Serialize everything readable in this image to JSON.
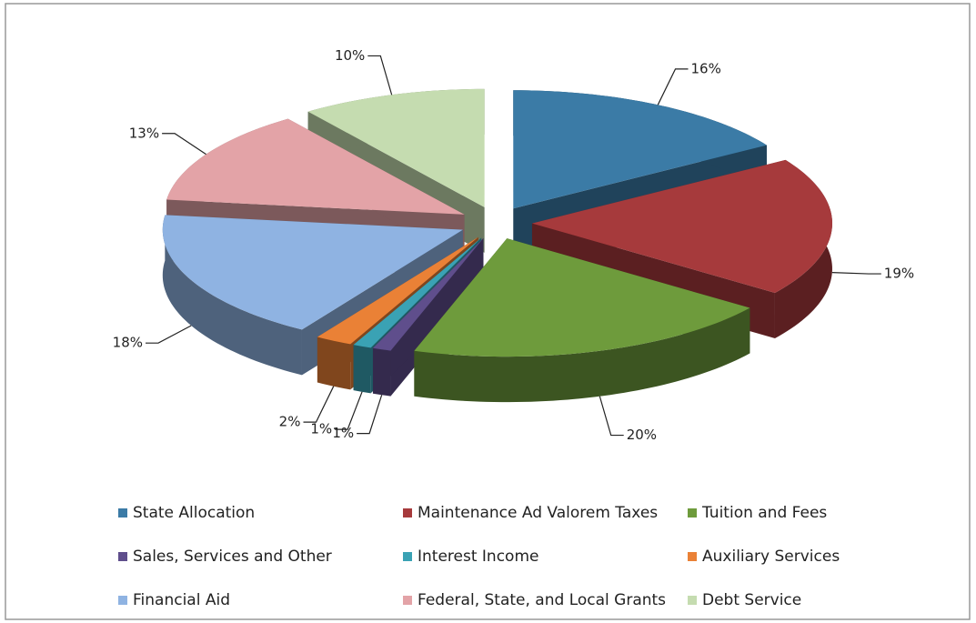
{
  "chart_data": {
    "type": "pie",
    "series": [
      {
        "name": "State Allocation",
        "color": "#3b7ba6"
      },
      {
        "name": "Maintenance Ad Valorem Taxes",
        "color": "#a63a3c"
      },
      {
        "name": "Tuition and Fees",
        "color": "#6e9b3c"
      },
      {
        "name": "Sales, Services and Other",
        "color": "#5f4e8c"
      },
      {
        "name": "Interest Income",
        "color": "#3aa2b4"
      },
      {
        "name": "Auxiliary Services",
        "color": "#ea8136"
      },
      {
        "name": "Financial Aid",
        "color": "#8fb3e2"
      },
      {
        "name": "Federal, State, and Local Grants",
        "color": "#e3a3a7"
      },
      {
        "name": "Debt Service",
        "color": "#c5dcb0"
      }
    ],
    "values": [
      16,
      19,
      20,
      1,
      1,
      2,
      18,
      13,
      10
    ],
    "value_labels": [
      "16%",
      "19%",
      "20%",
      "1%",
      "1%",
      "2%",
      "18%",
      "13%",
      "10%"
    ]
  }
}
